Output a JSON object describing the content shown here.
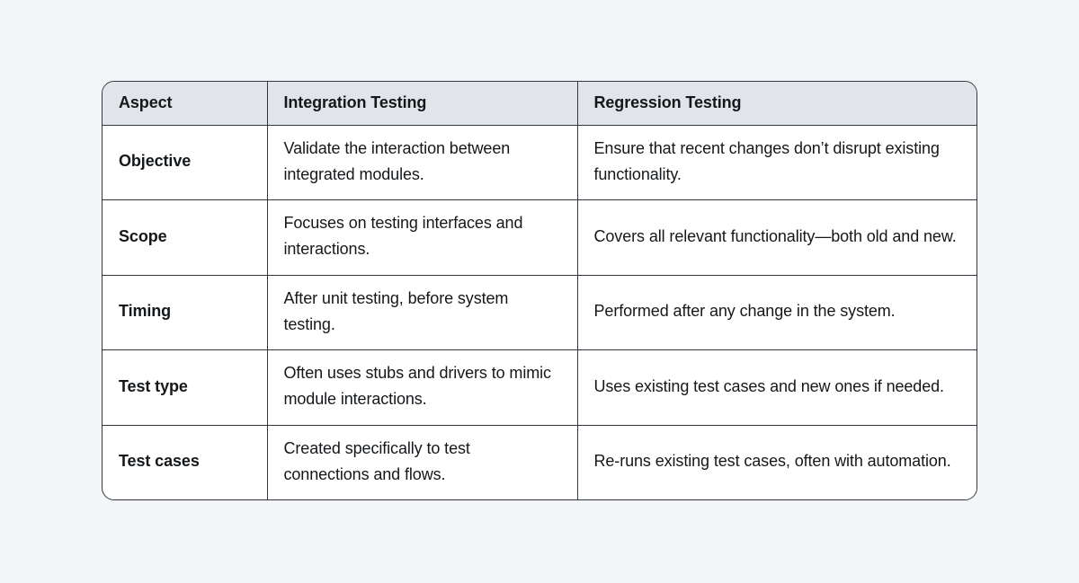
{
  "colors": {
    "page-bg": "#f3f5f6",
    "header-bg": "#e1e4e8",
    "cell-bg": "#ffffff",
    "border": "#32383e",
    "text": "#15181b"
  },
  "table": {
    "columns": [
      "Aspect",
      "Integration Testing",
      "Regression Testing"
    ],
    "rows": [
      [
        "Objective",
        "Validate the interaction between integrated modules.",
        "Ensure that recent changes don’t disrupt existing functionality."
      ],
      [
        "Scope",
        "Focuses on testing interfaces and interactions.",
        "Covers all relevant functionality—both old and new."
      ],
      [
        "Timing",
        "After unit testing, before system testing.",
        "Performed after any change in the system."
      ],
      [
        "Test type",
        "Often uses stubs and drivers to mimic module interactions.",
        "Uses existing test cases and new ones if needed."
      ],
      [
        "Test cases",
        "Created specifically to test connections and flows.",
        "Re-runs existing test cases, often with automation."
      ]
    ]
  }
}
